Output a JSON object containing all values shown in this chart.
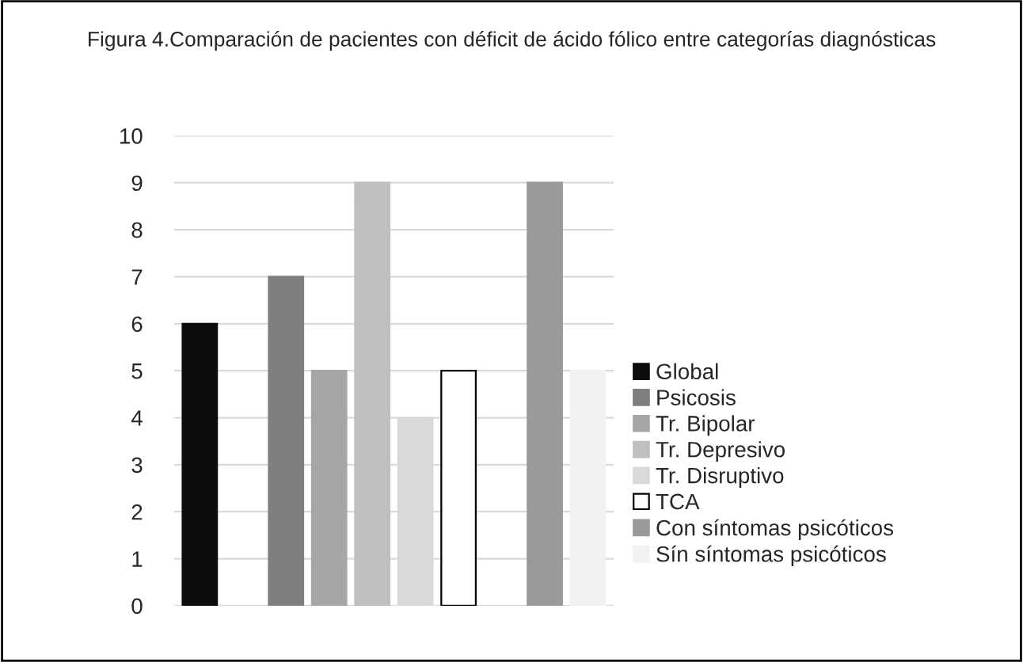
{
  "chart_data": {
    "type": "bar",
    "title": "Figura 4.Comparación de pacientes con déficit de ácido fólico entre categorías diagnósticas",
    "categories": [
      null,
      null,
      null,
      null,
      null,
      null,
      null,
      null,
      null,
      null
    ],
    "series": [
      {
        "name": "Global",
        "color": "#0d0d0d",
        "values": [
          6,
          null,
          null,
          null,
          null,
          null,
          null,
          null,
          null,
          null
        ]
      },
      {
        "name": "Psicosis",
        "color": "#7f7f7f",
        "values": [
          null,
          null,
          7,
          null,
          null,
          null,
          null,
          null,
          null,
          null
        ]
      },
      {
        "name": "Tr. Bipolar",
        "color": "#a6a6a6",
        "values": [
          null,
          null,
          null,
          5,
          null,
          null,
          null,
          null,
          null,
          null
        ]
      },
      {
        "name": "Tr. Depresivo",
        "color": "#bfbfbf",
        "values": [
          null,
          null,
          null,
          null,
          9,
          null,
          null,
          null,
          null,
          null
        ]
      },
      {
        "name": "Tr. Disruptivo",
        "color": "#d9d9d9",
        "values": [
          null,
          null,
          null,
          null,
          null,
          4,
          null,
          null,
          null,
          null
        ]
      },
      {
        "name": "TCA",
        "color": "#ffffff",
        "values": [
          null,
          null,
          null,
          null,
          null,
          null,
          5,
          null,
          null,
          null
        ]
      },
      {
        "name": "Con síntomas psicóticos",
        "color": "#9a9a9a",
        "values": [
          null,
          null,
          null,
          null,
          null,
          null,
          null,
          null,
          9,
          null
        ]
      },
      {
        "name": "Sín síntomas psicóticos",
        "color": "#f2f2f2",
        "values": [
          null,
          null,
          null,
          null,
          null,
          null,
          null,
          null,
          null,
          5
        ]
      }
    ],
    "ylim": [
      0,
      10
    ],
    "yticks": [
      0,
      1,
      2,
      3,
      4,
      5,
      6,
      7,
      8,
      9,
      10
    ],
    "grid": "y",
    "legend": "right"
  }
}
